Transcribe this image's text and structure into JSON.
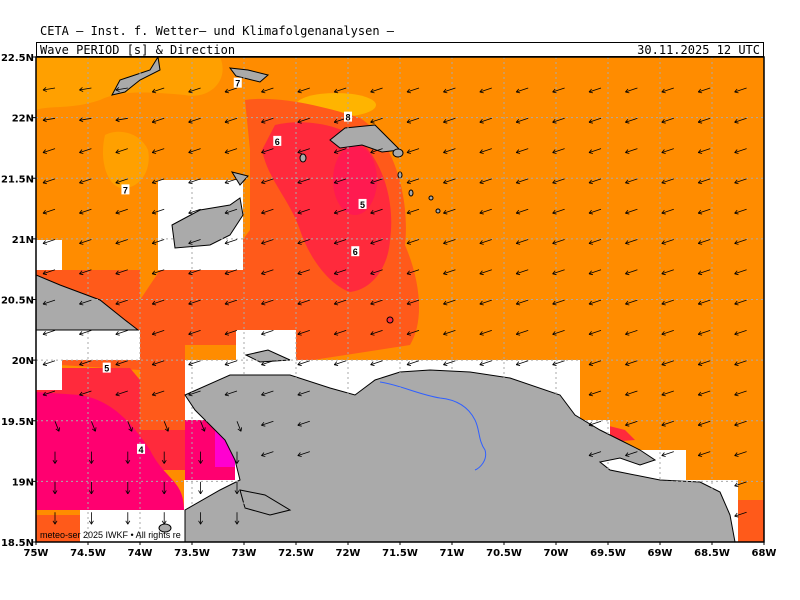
{
  "header": {
    "title": "CETA — Inst. f. Wetter— und Klimafolgenanalysen —",
    "subtitle": "Wave PERIOD [s] & Direction",
    "datetime": "30.11.2025 12 UTC"
  },
  "axes": {
    "lat_labels": [
      "22.5N",
      "22N",
      "21.5N",
      "21N",
      "20.5N",
      "20N",
      "19.5N",
      "19N",
      "18.5N"
    ],
    "lon_labels": [
      "75W",
      "74.5W",
      "74W",
      "73.5W",
      "73W",
      "72.5W",
      "72W",
      "71.5W",
      "71W",
      "70.5W",
      "70W",
      "69.5W",
      "69W",
      "68.5W",
      "68W"
    ]
  },
  "contour_labels": [
    {
      "text": "7",
      "lon": -73.06,
      "lat": 22.28
    },
    {
      "text": "8",
      "lon": -72.0,
      "lat": 22.0
    },
    {
      "text": "6",
      "lon": -72.68,
      "lat": 21.8
    },
    {
      "text": "7",
      "lon": -74.14,
      "lat": 21.4
    },
    {
      "text": "5",
      "lon": -71.86,
      "lat": 21.28
    },
    {
      "text": "6",
      "lon": -71.93,
      "lat": 20.89
    },
    {
      "text": "5",
      "lon": -74.32,
      "lat": 19.93
    },
    {
      "text": "4",
      "lon": -73.99,
      "lat": 19.26
    }
  ],
  "copyright": "meteo-ser          2025 IWKF • All rights re",
  "colors": {
    "ocean_orange": "#ff8c00",
    "period_6": "#ff5a1a",
    "period_5": "#ff2a3c",
    "period_4": "#ff0070",
    "period_lt4": "#ff00d0",
    "period_7": "#ffa000",
    "period_8": "#ffb400",
    "land": "#aaaaaa",
    "river": "#3060ff"
  }
}
